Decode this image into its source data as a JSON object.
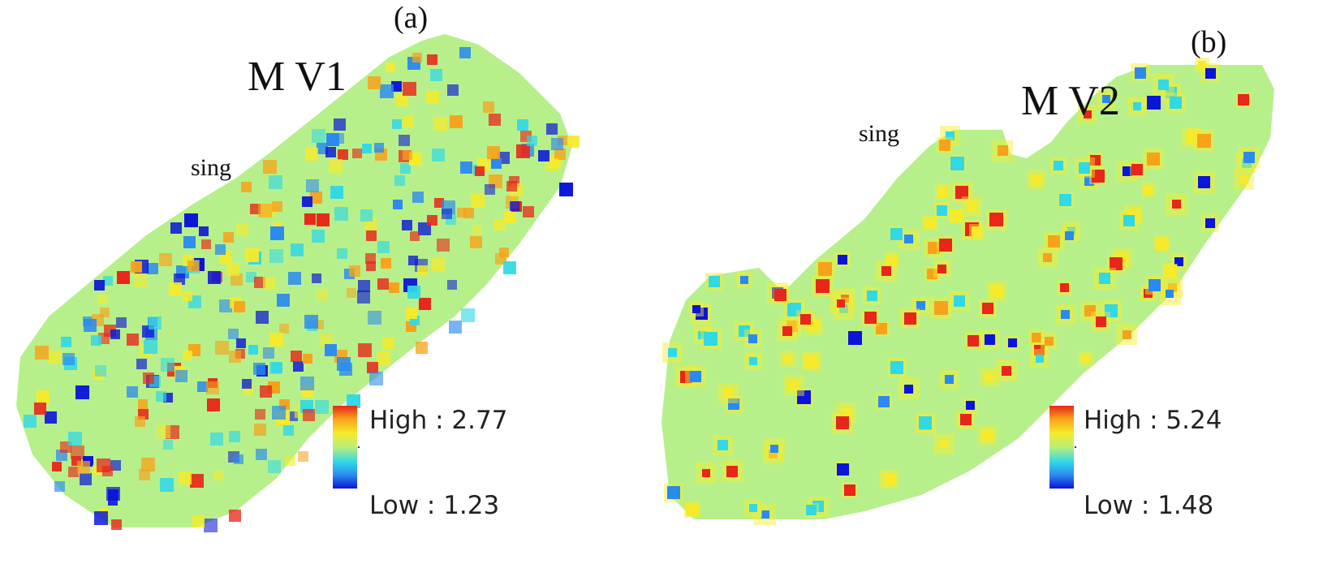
{
  "panels": [
    {
      "id": "a",
      "panel_label": "(a)",
      "map_title": "M V1",
      "place_label": "sing",
      "legend": {
        "high_label": "High : 2.77",
        "low_label": "Low : 1.23",
        "high_value": 2.77,
        "low_value": 1.23
      }
    },
    {
      "id": "b",
      "panel_label": "(b)",
      "map_title": "M V2",
      "place_label": "sing",
      "legend": {
        "high_label": "High : 5.24",
        "low_label": "Low : 1.48",
        "high_value": 5.24,
        "low_value": 1.48
      }
    }
  ],
  "colors": {
    "background_field": "#b7f08a",
    "high": "#e8261a",
    "orange": "#f7a21a",
    "yellow": "#f6ea2a",
    "cyan": "#31d8e6",
    "blue": "#2a8af0",
    "low": "#0b14d8"
  }
}
